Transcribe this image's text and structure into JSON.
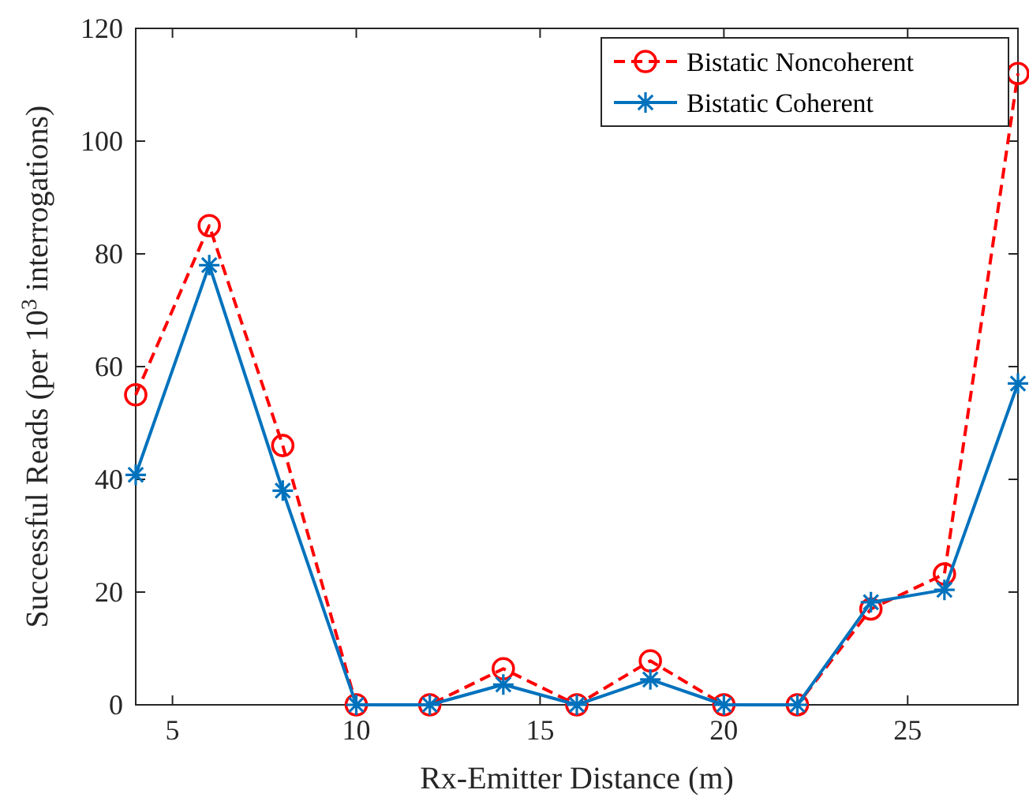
{
  "chart_data": {
    "type": "line",
    "xlabel": "Rx-Emitter Distance (m)",
    "ylabel": "Successful Reads (per 10$^{3}$ interrogations)",
    "x": [
      4,
      6,
      8,
      10,
      12,
      14,
      16,
      18,
      20,
      22,
      24,
      26,
      28
    ],
    "xlim": [
      4,
      28
    ],
    "xticks": [
      5,
      10,
      15,
      20,
      25
    ],
    "ylim": [
      0,
      120
    ],
    "yticks": [
      0,
      20,
      40,
      60,
      80,
      100,
      120
    ],
    "grid": false,
    "legend": "top right",
    "series": [
      {
        "name": "Bistatic Noncoherent",
        "color": "#ff0000",
        "marker": "circle",
        "line_style": "dashed",
        "values": [
          55,
          85,
          46,
          0,
          0,
          6.4,
          0,
          7.8,
          0,
          0,
          17,
          23.2,
          112
        ]
      },
      {
        "name": "Bistatic Coherent",
        "color": "#0072bd",
        "marker": "cross",
        "line_style": "solid",
        "values": [
          40.8,
          78,
          38,
          0,
          0,
          3.6,
          0,
          4.5,
          0,
          0,
          18.2,
          20.4,
          57
        ]
      }
    ]
  }
}
